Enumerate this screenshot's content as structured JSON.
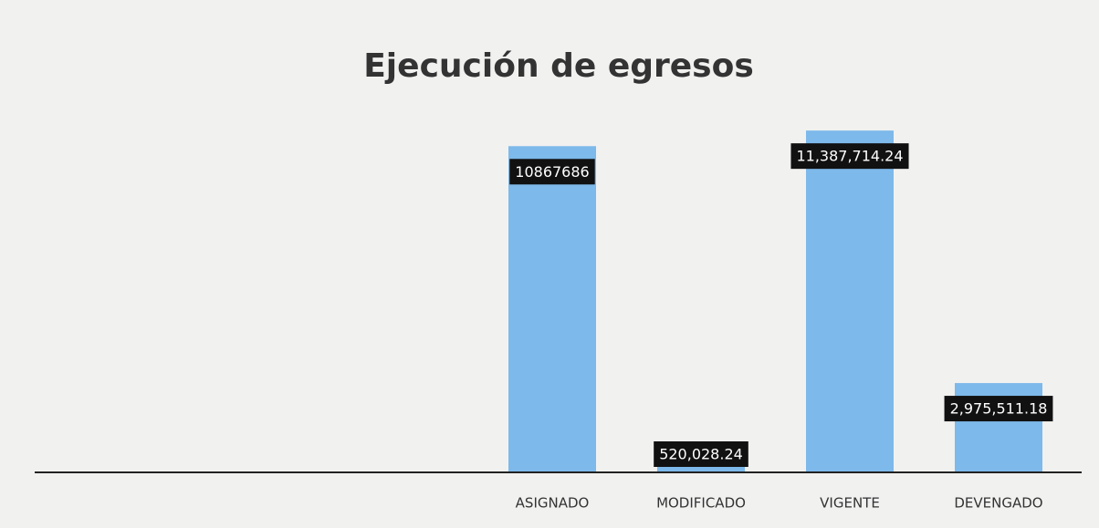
{
  "chart_data": {
    "type": "bar",
    "title": "Ejecución de egresos",
    "categories": [
      null,
      null,
      null,
      "ASIGNADO",
      "MODIFICADO",
      "VIGENTE",
      "DEVENGADO"
    ],
    "values": [
      null,
      null,
      null,
      10867686,
      520028.24,
      11387714.24,
      2975511.18
    ],
    "value_labels": [
      null,
      null,
      null,
      "10867686",
      "520,028.24",
      "11,387,714.24",
      "2,975,511.18"
    ],
    "color": "#7db9ea",
    "ylim": [
      0,
      12000000
    ]
  }
}
